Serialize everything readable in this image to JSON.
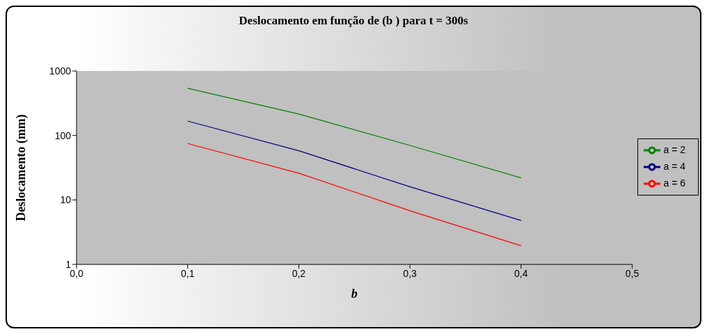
{
  "chart_data": {
    "type": "line",
    "title": "Deslocamento em função de (b ) para t = 300s",
    "xlabel": "b",
    "ylabel": "Deslocamento (mm)",
    "x": [
      0.1,
      0.2,
      0.3,
      0.4
    ],
    "series": [
      {
        "name": "a = 2",
        "color": "#008000",
        "values": [
          540,
          215,
          70,
          22
        ]
      },
      {
        "name": "a = 4",
        "color": "#000080",
        "values": [
          167,
          58,
          16,
          4.8
        ]
      },
      {
        "name": "a = 6",
        "color": "#ff0000",
        "values": [
          75,
          26,
          6.8,
          1.95
        ]
      }
    ],
    "log": "y",
    "xlim": [
      0,
      0.5
    ],
    "xticks": [
      {
        "value": 0,
        "label": "0,0"
      },
      {
        "value": 0.1,
        "label": "0,1"
      },
      {
        "value": 0.2,
        "label": "0,2"
      },
      {
        "value": 0.3,
        "label": "0,3"
      },
      {
        "value": 0.4,
        "label": "0,4"
      },
      {
        "value": 0.5,
        "label": "0,5"
      }
    ],
    "ylim": [
      1,
      1000
    ],
    "yticks": [
      1,
      10,
      100,
      1000
    ],
    "grid": false,
    "legend": "right",
    "marker": "none",
    "line_style": "solid"
  }
}
